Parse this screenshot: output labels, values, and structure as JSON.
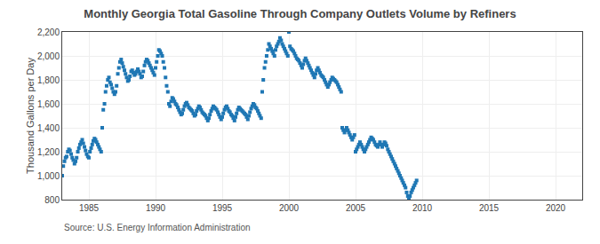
{
  "chart_data": {
    "type": "scatter",
    "title": "Monthly Georgia Total Gasoline Through Company Outlets Volume by Refiners",
    "ylabel": "Thousand Gallons per Day",
    "annotations": [
      "Source: U.S. Energy Information Administration"
    ],
    "marker": "square",
    "grid": true,
    "xlim": [
      1983.0,
      2022.0
    ],
    "ylim": [
      800,
      2200
    ],
    "xticks": [
      1985,
      1990,
      1995,
      2000,
      2005,
      2010,
      2015,
      2020
    ],
    "yticks": [
      800,
      {
        "value": 1000,
        "label": "1,000"
      },
      {
        "value": 1200,
        "label": "1,200"
      },
      {
        "value": 1400,
        "label": "1,400"
      },
      {
        "value": 1600,
        "label": "1,600"
      },
      {
        "value": 1800,
        "label": "1,800"
      },
      {
        "value": 2000,
        "label": "2,000"
      },
      {
        "value": 2200,
        "label": "2,200"
      }
    ],
    "x": [
      1983.0,
      1983.08,
      1983.17,
      1983.25,
      1983.33,
      1983.42,
      1983.5,
      1983.58,
      1983.67,
      1983.75,
      1983.83,
      1983.92,
      1984.0,
      1984.08,
      1984.17,
      1984.25,
      1984.33,
      1984.42,
      1984.5,
      1984.58,
      1984.67,
      1984.75,
      1984.83,
      1984.92,
      1985.0,
      1985.08,
      1985.17,
      1985.25,
      1985.33,
      1985.42,
      1985.5,
      1985.58,
      1985.67,
      1985.75,
      1985.83,
      1985.92,
      1986.0,
      1986.08,
      1986.17,
      1986.25,
      1986.33,
      1986.42,
      1986.5,
      1986.58,
      1986.67,
      1986.75,
      1986.83,
      1986.92,
      1987.0,
      1987.08,
      1987.17,
      1987.25,
      1987.33,
      1987.42,
      1987.5,
      1987.58,
      1987.67,
      1987.75,
      1987.83,
      1987.92,
      1988.0,
      1988.08,
      1988.17,
      1988.25,
      1988.33,
      1988.42,
      1988.5,
      1988.58,
      1988.67,
      1988.75,
      1988.83,
      1988.92,
      1989.0,
      1989.08,
      1989.17,
      1989.25,
      1989.33,
      1989.42,
      1989.5,
      1989.58,
      1989.67,
      1989.75,
      1989.83,
      1989.92,
      1990.0,
      1990.08,
      1990.17,
      1990.25,
      1990.33,
      1990.42,
      1990.5,
      1990.58,
      1990.67,
      1990.75,
      1990.83,
      1990.92,
      1991.0,
      1991.08,
      1991.17,
      1991.25,
      1991.33,
      1991.42,
      1991.5,
      1991.58,
      1991.67,
      1991.75,
      1991.83,
      1991.92,
      1992.0,
      1992.08,
      1992.17,
      1992.25,
      1992.33,
      1992.42,
      1992.5,
      1992.58,
      1992.67,
      1992.75,
      1992.83,
      1992.92,
      1993.0,
      1993.08,
      1993.17,
      1993.25,
      1993.33,
      1993.42,
      1993.5,
      1993.58,
      1993.67,
      1993.75,
      1993.83,
      1993.92,
      1994.0,
      1994.08,
      1994.17,
      1994.25,
      1994.33,
      1994.42,
      1994.5,
      1994.58,
      1994.67,
      1994.75,
      1994.83,
      1994.92,
      1995.0,
      1995.08,
      1995.17,
      1995.25,
      1995.33,
      1995.42,
      1995.5,
      1995.58,
      1995.67,
      1995.75,
      1995.83,
      1995.92,
      1996.0,
      1996.08,
      1996.17,
      1996.25,
      1996.33,
      1996.42,
      1996.5,
      1996.58,
      1996.67,
      1996.75,
      1996.83,
      1996.92,
      1997.0,
      1997.08,
      1997.17,
      1997.25,
      1997.33,
      1997.42,
      1997.5,
      1997.58,
      1997.67,
      1997.75,
      1997.83,
      1997.92,
      1998.0,
      1998.08,
      1998.17,
      1998.25,
      1998.33,
      1998.42,
      1998.5,
      1998.58,
      1998.67,
      1998.75,
      1998.83,
      1998.92,
      1999.0,
      1999.08,
      1999.17,
      1999.25,
      1999.33,
      1999.42,
      1999.5,
      1999.58,
      1999.67,
      1999.75,
      1999.83,
      1999.92,
      2000.0,
      2000.08,
      2000.17,
      2000.25,
      2000.33,
      2000.42,
      2000.5,
      2000.58,
      2000.67,
      2000.75,
      2000.83,
      2000.92,
      2001.0,
      2001.08,
      2001.17,
      2001.25,
      2001.33,
      2001.42,
      2001.5,
      2001.58,
      2001.67,
      2001.75,
      2001.83,
      2001.92,
      2002.0,
      2002.08,
      2002.17,
      2002.25,
      2002.33,
      2002.42,
      2002.5,
      2002.58,
      2002.67,
      2002.75,
      2002.83,
      2002.92,
      2003.0,
      2003.08,
      2003.17,
      2003.25,
      2003.33,
      2003.42,
      2003.5,
      2003.58,
      2003.67,
      2003.75,
      2003.83,
      2003.92,
      2004.0,
      2004.08,
      2004.17,
      2004.25,
      2004.33,
      2004.42,
      2004.5,
      2004.58,
      2004.67,
      2004.75,
      2004.83,
      2004.92,
      2005.0,
      2005.08,
      2005.17,
      2005.25,
      2005.33,
      2005.42,
      2005.5,
      2005.58,
      2005.67,
      2005.75,
      2005.83,
      2005.92,
      2006.0,
      2006.08,
      2006.17,
      2006.25,
      2006.33,
      2006.42,
      2006.5,
      2006.58,
      2006.67,
      2006.75,
      2006.83,
      2006.92,
      2007.0,
      2007.08,
      2007.17,
      2007.25,
      2007.33,
      2007.42,
      2007.5,
      2007.58,
      2007.67,
      2007.75,
      2007.83,
      2007.92,
      2008.0,
      2008.08,
      2008.17,
      2008.25,
      2008.33,
      2008.42,
      2008.5,
      2008.58,
      2008.67,
      2008.75,
      2008.83,
      2008.92,
      2009.0,
      2009.08,
      2009.17,
      2009.25,
      2009.33,
      2009.42,
      2009.5,
      2009.58
    ],
    "values": [
      1000,
      1080,
      1120,
      1150,
      1160,
      1200,
      1220,
      1210,
      1180,
      1150,
      1130,
      1100,
      1120,
      1150,
      1200,
      1230,
      1260,
      1280,
      1300,
      1270,
      1240,
      1210,
      1180,
      1160,
      1150,
      1200,
      1230,
      1260,
      1290,
      1310,
      1300,
      1280,
      1260,
      1240,
      1220,
      1200,
      1400,
      1550,
      1600,
      1700,
      1750,
      1800,
      1820,
      1780,
      1760,
      1730,
      1700,
      1680,
      1700,
      1750,
      1850,
      1900,
      1950,
      1970,
      1940,
      1910,
      1880,
      1850,
      1820,
      1790,
      1800,
      1830,
      1870,
      1880,
      1860,
      1840,
      1850,
      1870,
      1890,
      1870,
      1850,
      1820,
      1830,
      1870,
      1920,
      1950,
      1970,
      1960,
      1940,
      1920,
      1900,
      1880,
      1860,
      1840,
      1900,
      1950,
      2000,
      2050,
      2040,
      2020,
      2000,
      1950,
      1900,
      1820,
      1750,
      1700,
      1600,
      1580,
      1620,
      1650,
      1640,
      1620,
      1600,
      1590,
      1570,
      1550,
      1530,
      1510,
      1520,
      1550,
      1580,
      1600,
      1610,
      1590,
      1570,
      1560,
      1550,
      1540,
      1520,
      1500,
      1510,
      1540,
      1560,
      1580,
      1570,
      1550,
      1530,
      1520,
      1510,
      1500,
      1480,
      1460,
      1480,
      1510,
      1540,
      1560,
      1580,
      1570,
      1560,
      1550,
      1530,
      1510,
      1490,
      1470,
      1490,
      1520,
      1550,
      1570,
      1580,
      1560,
      1540,
      1530,
      1510,
      1500,
      1480,
      1460,
      1490,
      1520,
      1550,
      1570,
      1560,
      1550,
      1540,
      1530,
      1520,
      1510,
      1490,
      1470,
      1500,
      1530,
      1560,
      1580,
      1600,
      1590,
      1570,
      1560,
      1540,
      1520,
      1500,
      1480,
      1700,
      1800,
      1900,
      1950,
      2000,
      2050,
      2100,
      2080,
      2060,
      2040,
      2020,
      2000,
      2050,
      2080,
      2100,
      2120,
      2150,
      2130,
      2100,
      2080,
      2060,
      2040,
      2020,
      2000,
      2200,
      2080,
      2060,
      2050,
      2040,
      2020,
      2000,
      1980,
      1970,
      1960,
      1940,
      1920,
      1900,
      1930,
      1960,
      1980,
      1960,
      1940,
      1920,
      1900,
      1880,
      1860,
      1840,
      1820,
      1850,
      1880,
      1900,
      1880,
      1860,
      1840,
      1830,
      1820,
      1800,
      1780,
      1760,
      1740,
      1760,
      1780,
      1800,
      1820,
      1810,
      1800,
      1790,
      1780,
      1760,
      1740,
      1720,
      1700,
      1400,
      1380,
      1360,
      1380,
      1400,
      1380,
      1360,
      1340,
      1320,
      1300,
      1320,
      1340,
      1200,
      1220,
      1240,
      1260,
      1280,
      1260,
      1240,
      1220,
      1200,
      1220,
      1240,
      1260,
      1280,
      1300,
      1320,
      1310,
      1300,
      1280,
      1260,
      1250,
      1240,
      1260,
      1280,
      1260,
      1240,
      1260,
      1280,
      1270,
      1250,
      1220,
      1200,
      1180,
      1160,
      1140,
      1120,
      1100,
      1080,
      1060,
      1040,
      1020,
      1000,
      980,
      960,
      940,
      920,
      900,
      860,
      830,
      800,
      830,
      860,
      880,
      900,
      920,
      940,
      960
    ]
  }
}
